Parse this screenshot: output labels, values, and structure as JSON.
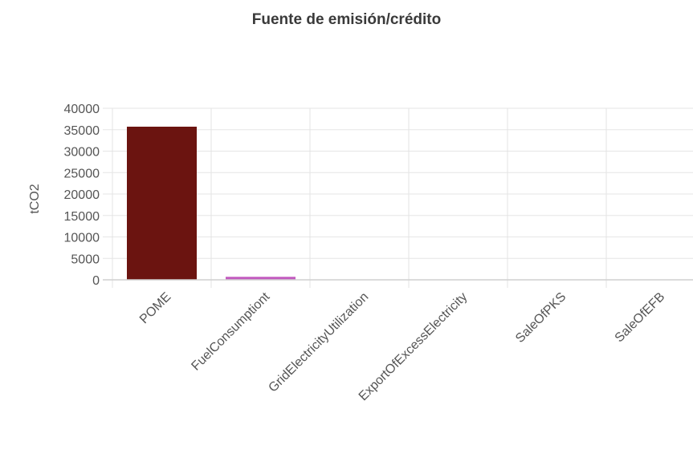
{
  "chart_data": {
    "type": "bar",
    "title": "Fuente de emisión/crédito",
    "xlabel": "",
    "ylabel": "tCO2",
    "categories": [
      "POME",
      "FuelConsumptiont",
      "GridElectricityUtilization",
      "ExportOfExcessElectricity",
      "SaleOfPKS",
      "SaleOfEFB"
    ],
    "values": [
      35700,
      700,
      0,
      0,
      0,
      0
    ],
    "colors": [
      "#6b1410",
      "#c25bbf",
      "#cccccc",
      "#cccccc",
      "#cccccc",
      "#cccccc"
    ],
    "ylim": [
      0,
      40000
    ],
    "yticks": [
      "0",
      "5000",
      "10000",
      "15000",
      "20000",
      "25000",
      "30000",
      "35000",
      "40000"
    ],
    "grid": true
  }
}
